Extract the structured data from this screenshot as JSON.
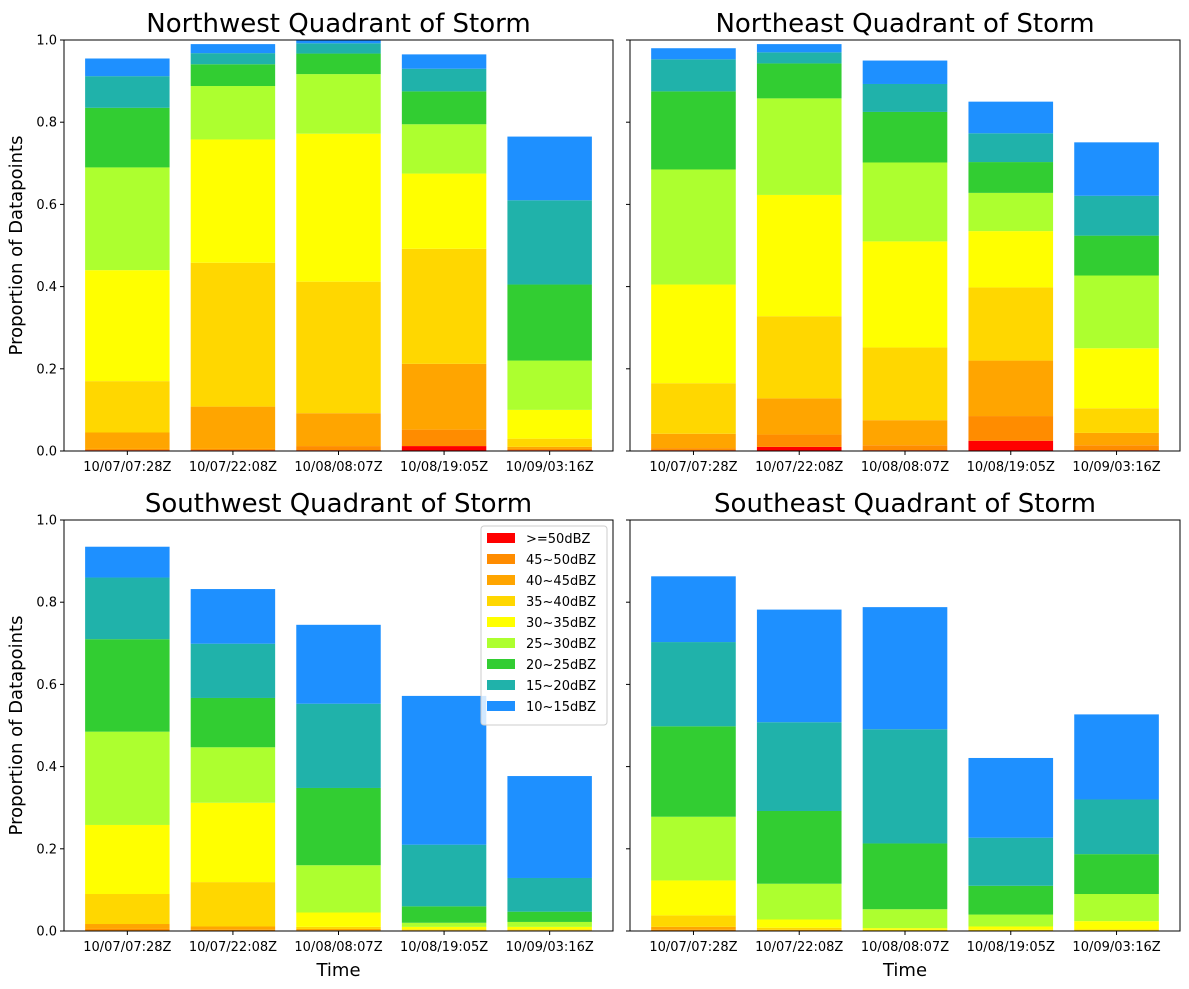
{
  "colors": {
    ">=50dBZ": "#ff0000",
    "45~50dBZ": "#ff8c00",
    "40~45dBZ": "#ffa500",
    "35~40dBZ": "#ffd700",
    "30~35dBZ": "#ffff00",
    "25~30dBZ": "#adff2f",
    "20~25dBZ": "#32cd32",
    "15~20dBZ": "#20b2aa",
    "10~15dBZ": "#1e90ff"
  },
  "chart_data": [
    {
      "type": "bar",
      "stacked": true,
      "title": "Northwest Quadrant of Storm",
      "xlabel": "",
      "ylabel": "Proportion of Datapoints",
      "ylim": [
        0,
        1.0
      ],
      "yticks": [
        "0.0",
        "0.2",
        "0.4",
        "0.6",
        "0.8",
        "1.0"
      ],
      "categories": [
        "10/07/07:28Z",
        "10/07/22:08Z",
        "10/08/08:07Z",
        "10/08/19:05Z",
        "10/09/03:16Z"
      ],
      "legend": false,
      "series": [
        {
          "name": ">=50dBZ",
          "values": [
            0.002,
            0.002,
            0.002,
            0.012,
            0.002
          ]
        },
        {
          "name": "45~50dBZ",
          "values": [
            0.003,
            0.003,
            0.01,
            0.04,
            0.003
          ]
        },
        {
          "name": "40~45dBZ",
          "values": [
            0.04,
            0.103,
            0.08,
            0.16,
            0.005
          ]
        },
        {
          "name": "35~40dBZ",
          "values": [
            0.125,
            0.35,
            0.32,
            0.28,
            0.02
          ]
        },
        {
          "name": "30~35dBZ",
          "values": [
            0.27,
            0.3,
            0.36,
            0.183,
            0.07
          ]
        },
        {
          "name": "25~30dBZ",
          "values": [
            0.25,
            0.13,
            0.145,
            0.12,
            0.12
          ]
        },
        {
          "name": "20~25dBZ",
          "values": [
            0.145,
            0.053,
            0.05,
            0.08,
            0.185
          ]
        },
        {
          "name": "15~20dBZ",
          "values": [
            0.077,
            0.027,
            0.025,
            0.055,
            0.205
          ]
        },
        {
          "name": "10~15dBZ",
          "values": [
            0.043,
            0.022,
            0.008,
            0.035,
            0.155
          ]
        }
      ]
    },
    {
      "type": "bar",
      "stacked": true,
      "title": "Northeast Quadrant of Storm",
      "xlabel": "",
      "ylabel": "",
      "ylim": [
        0,
        1.0
      ],
      "yticks": [],
      "categories": [
        "10/07/07:28Z",
        "10/07/22:08Z",
        "10/08/08:07Z",
        "10/08/19:05Z",
        "10/09/03:16Z"
      ],
      "legend": false,
      "series": [
        {
          "name": ">=50dBZ",
          "values": [
            0.002,
            0.01,
            0.002,
            0.025,
            0.002
          ]
        },
        {
          "name": "45~50dBZ",
          "values": [
            0.005,
            0.03,
            0.012,
            0.06,
            0.012
          ]
        },
        {
          "name": "40~45dBZ",
          "values": [
            0.035,
            0.088,
            0.061,
            0.135,
            0.03
          ]
        },
        {
          "name": "35~40dBZ",
          "values": [
            0.123,
            0.2,
            0.177,
            0.178,
            0.06
          ]
        },
        {
          "name": "30~35dBZ",
          "values": [
            0.24,
            0.295,
            0.258,
            0.137,
            0.146
          ]
        },
        {
          "name": "25~30dBZ",
          "values": [
            0.28,
            0.235,
            0.192,
            0.093,
            0.177
          ]
        },
        {
          "name": "20~25dBZ",
          "values": [
            0.19,
            0.085,
            0.123,
            0.075,
            0.097
          ]
        },
        {
          "name": "15~20dBZ",
          "values": [
            0.078,
            0.027,
            0.068,
            0.07,
            0.097
          ]
        },
        {
          "name": "10~15dBZ",
          "values": [
            0.027,
            0.02,
            0.057,
            0.077,
            0.13
          ]
        }
      ]
    },
    {
      "type": "bar",
      "stacked": true,
      "title": "Southwest Quadrant of Storm",
      "xlabel": "Time",
      "ylabel": "Proportion of Datapoints",
      "ylim": [
        0,
        1.0
      ],
      "yticks": [
        "0.0",
        "0.2",
        "0.4",
        "0.6",
        "0.8",
        "1.0"
      ],
      "categories": [
        "10/07/07:28Z",
        "10/07/22:08Z",
        "10/08/08:07Z",
        "10/08/19:05Z",
        "10/09/03:16Z"
      ],
      "legend": true,
      "legend_position": "top-right",
      "series": [
        {
          "name": ">=50dBZ",
          "values": [
            0.001,
            0.001,
            0.001,
            0.0,
            0.0
          ]
        },
        {
          "name": "45~50dBZ",
          "values": [
            0.004,
            0.002,
            0.001,
            0.001,
            0.001
          ]
        },
        {
          "name": "40~45dBZ",
          "values": [
            0.012,
            0.008,
            0.003,
            0.001,
            0.001
          ]
        },
        {
          "name": "35~40dBZ",
          "values": [
            0.073,
            0.108,
            0.005,
            0.002,
            0.002
          ]
        },
        {
          "name": "30~35dBZ",
          "values": [
            0.168,
            0.193,
            0.035,
            0.006,
            0.006
          ]
        },
        {
          "name": "25~30dBZ",
          "values": [
            0.227,
            0.135,
            0.115,
            0.01,
            0.012
          ]
        },
        {
          "name": "20~25dBZ",
          "values": [
            0.225,
            0.12,
            0.188,
            0.04,
            0.025
          ]
        },
        {
          "name": "15~20dBZ",
          "values": [
            0.15,
            0.132,
            0.205,
            0.15,
            0.082
          ]
        },
        {
          "name": "10~15dBZ",
          "values": [
            0.075,
            0.133,
            0.192,
            0.362,
            0.248
          ]
        }
      ]
    },
    {
      "type": "bar",
      "stacked": true,
      "title": "Southeast Quadrant of Storm",
      "xlabel": "Time",
      "ylabel": "",
      "ylim": [
        0,
        1.0
      ],
      "yticks": [],
      "categories": [
        "10/07/07:28Z",
        "10/07/22:08Z",
        "10/08/08:07Z",
        "10/08/19:05Z",
        "10/09/03:16Z"
      ],
      "legend": false,
      "series": [
        {
          "name": ">=50dBZ",
          "values": [
            0.001,
            0.0,
            0.0,
            0.0,
            0.0
          ]
        },
        {
          "name": "45~50dBZ",
          "values": [
            0.002,
            0.001,
            0.0,
            0.0,
            0.0
          ]
        },
        {
          "name": "40~45dBZ",
          "values": [
            0.007,
            0.002,
            0.001,
            0.001,
            0.001
          ]
        },
        {
          "name": "35~40dBZ",
          "values": [
            0.028,
            0.005,
            0.002,
            0.002,
            0.003
          ]
        },
        {
          "name": "30~35dBZ",
          "values": [
            0.085,
            0.02,
            0.004,
            0.008,
            0.02
          ]
        },
        {
          "name": "25~30dBZ",
          "values": [
            0.155,
            0.087,
            0.046,
            0.029,
            0.066
          ]
        },
        {
          "name": "20~25dBZ",
          "values": [
            0.22,
            0.177,
            0.16,
            0.07,
            0.097
          ]
        },
        {
          "name": "15~20dBZ",
          "values": [
            0.205,
            0.216,
            0.278,
            0.117,
            0.133
          ]
        },
        {
          "name": "10~15dBZ",
          "values": [
            0.16,
            0.274,
            0.297,
            0.194,
            0.207
          ]
        }
      ]
    }
  ]
}
